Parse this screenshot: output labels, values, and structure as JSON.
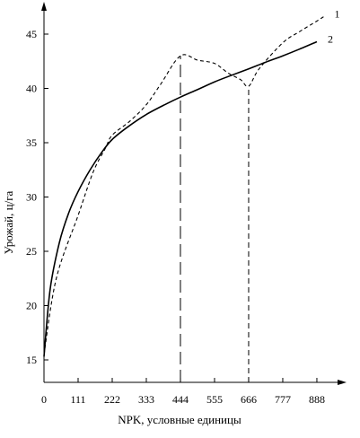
{
  "chart_data": {
    "type": "line",
    "xlabel": "NPK, условные единицы",
    "ylabel": "Урожай, ц/га",
    "xlim": [
      0,
      980
    ],
    "ylim": [
      12,
      48
    ],
    "x_ticks": [
      0,
      111,
      222,
      333,
      444,
      555,
      666,
      777,
      888
    ],
    "x_tick_labels": [
      "0",
      "111",
      "222",
      "333",
      "444",
      "555",
      "666",
      "777",
      "888"
    ],
    "y_ticks": [
      15,
      20,
      25,
      30,
      35,
      40,
      45
    ],
    "y_tick_labels": [
      "15",
      "20",
      "25",
      "30",
      "35",
      "40",
      "45"
    ],
    "grid": false,
    "series": [
      {
        "name": "1",
        "style": "dashed",
        "color": "#000000",
        "x": [
          0,
          40,
          111,
          160,
          200,
          222,
          280,
          333,
          380,
          444,
          500,
          555,
          600,
          640,
          666,
          700,
          777,
          830,
          888,
          910
        ],
        "y": [
          15.5,
          22.5,
          28.3,
          32.3,
          34.5,
          35.7,
          37.0,
          38.5,
          40.4,
          43.0,
          42.6,
          42.3,
          41.4,
          40.8,
          40.2,
          41.8,
          44.2,
          45.2,
          46.2,
          46.6
        ]
      },
      {
        "name": "2",
        "style": "solid",
        "color": "#000000",
        "x": [
          0,
          20,
          50,
          80,
          111,
          150,
          190,
          222,
          270,
          333,
          400,
          444,
          500,
          555,
          600,
          666,
          720,
          777,
          830,
          888
        ],
        "y": [
          15.3,
          21.5,
          25.8,
          28.5,
          30.5,
          32.5,
          34.2,
          35.3,
          36.4,
          37.6,
          38.6,
          39.2,
          39.9,
          40.6,
          41.1,
          41.8,
          42.4,
          43.0,
          43.6,
          44.3
        ]
      }
    ],
    "reference_lines": [
      {
        "x": 444,
        "y_top": 43.0,
        "style": "long-dash"
      },
      {
        "x": 666,
        "y_top": 40.2,
        "style": "dashed"
      }
    ]
  }
}
